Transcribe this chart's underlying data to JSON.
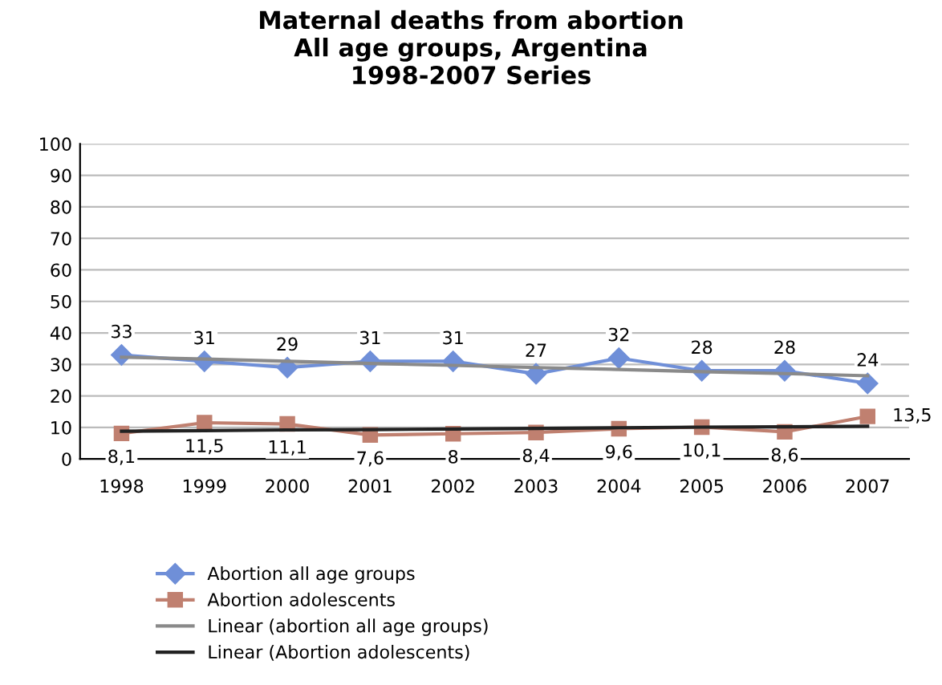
{
  "chart_data": {
    "type": "line",
    "title": "Maternal deaths from abortion\nAll age groups, Argentina\n1998-2007 Series",
    "categories": [
      "1998",
      "1999",
      "2000",
      "2001",
      "2002",
      "2003",
      "2004",
      "2005",
      "2006",
      "2007"
    ],
    "series": [
      {
        "name": "Abortion all age groups",
        "color": "#6f8fd8",
        "marker": "diamond",
        "values": [
          33,
          31,
          29,
          31,
          31,
          27,
          32,
          28,
          28,
          24
        ],
        "value_labels": [
          "33",
          "31",
          "29",
          "31",
          "31",
          "27",
          "32",
          "28",
          "28",
          "24"
        ]
      },
      {
        "name": "Abortion adolescents",
        "color": "#c08070",
        "marker": "square",
        "values": [
          8.1,
          11.5,
          11.1,
          7.6,
          8,
          8.4,
          9.6,
          10.1,
          8.6,
          13.5
        ],
        "value_labels": [
          "8,1",
          "11,5",
          "11,1",
          "7,6",
          "8",
          "8,4",
          "9,6",
          "10,1",
          "8,6",
          "13,5"
        ]
      },
      {
        "name": "Linear (abortion all age groups)",
        "color": "#8a8a8a",
        "marker": "none",
        "values": [
          32.3,
          31.7,
          31.0,
          30.3,
          29.7,
          29.0,
          28.4,
          27.7,
          27.1,
          26.4
        ]
      },
      {
        "name": "Linear (Abortion adolescents)",
        "color": "#222222",
        "marker": "none",
        "values": [
          8.8,
          9.0,
          9.2,
          9.3,
          9.5,
          9.7,
          9.9,
          10.1,
          10.2,
          10.4
        ]
      }
    ],
    "ylim": [
      0,
      100
    ],
    "yticks": [
      0,
      10,
      20,
      30,
      40,
      50,
      60,
      70,
      80,
      90,
      100
    ],
    "grid": "y",
    "legend": "bottom"
  }
}
